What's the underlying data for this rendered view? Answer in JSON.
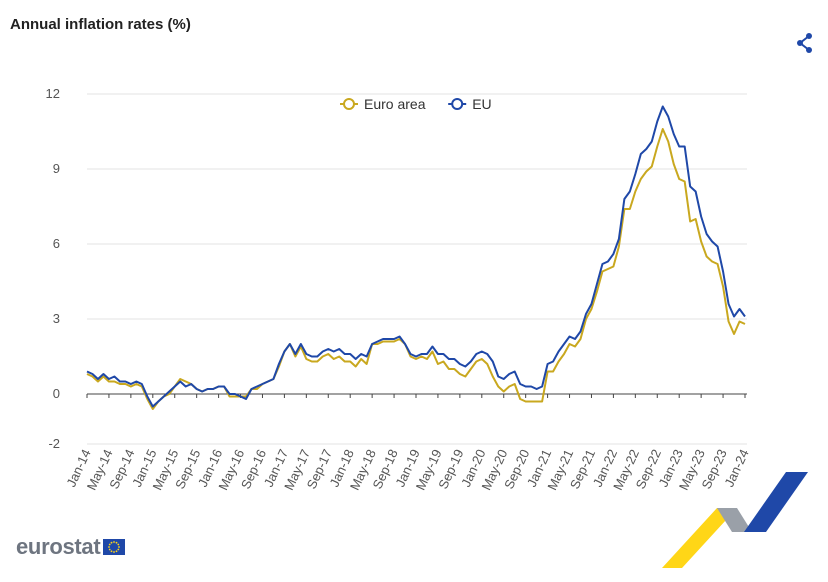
{
  "title": "Annual inflation rates (%)",
  "icons": {
    "share": "share-icon"
  },
  "logo": {
    "text": "eurostat",
    "flag": "eu-flag-icon"
  },
  "colors": {
    "euro_area": "#c9a81f",
    "eu": "#1f48a8",
    "grid": "#e3e3e3",
    "axis": "#555555"
  },
  "chart_data": {
    "type": "line",
    "title": "Annual inflation rates (%)",
    "legend": "top-center",
    "grid": true,
    "ylim": [
      -2,
      12
    ],
    "yticks": [
      -2,
      0,
      3,
      6,
      9,
      12
    ],
    "xticks": [
      "Jan-14",
      "May-14",
      "Sep-14",
      "Jan-15",
      "May-15",
      "Sep-15",
      "Jan-16",
      "May-16",
      "Sep-16",
      "Jan-17",
      "May-17",
      "Sep-17",
      "Jan-18",
      "May-18",
      "Sep-18",
      "Jan-19",
      "May-19",
      "Sep-19",
      "Jan-20",
      "May-20",
      "Sep-20",
      "Jan-21",
      "May-21",
      "Sep-21",
      "Jan-22",
      "May-22",
      "Sep-22",
      "Jan-23",
      "May-23",
      "Sep-23",
      "Jan-24"
    ],
    "x_start": "Jan-14",
    "x_end": "Feb-24",
    "series": [
      {
        "name": "Euro area",
        "color": "#c9a81f",
        "values": [
          0.8,
          0.7,
          0.5,
          0.7,
          0.5,
          0.5,
          0.4,
          0.4,
          0.3,
          0.4,
          0.3,
          -0.2,
          -0.6,
          -0.3,
          -0.1,
          0.0,
          0.3,
          0.6,
          0.5,
          0.4,
          0.2,
          0.1,
          0.2,
          0.2,
          0.3,
          0.3,
          -0.1,
          -0.1,
          -0.1,
          -0.1,
          0.2,
          0.2,
          0.4,
          0.5,
          0.6,
          1.1,
          1.7,
          2.0,
          1.5,
          1.9,
          1.4,
          1.3,
          1.3,
          1.5,
          1.6,
          1.4,
          1.5,
          1.3,
          1.3,
          1.1,
          1.4,
          1.2,
          2.0,
          2.0,
          2.1,
          2.1,
          2.1,
          2.2,
          2.0,
          1.5,
          1.4,
          1.5,
          1.4,
          1.7,
          1.2,
          1.3,
          1.0,
          1.0,
          0.8,
          0.7,
          1.0,
          1.3,
          1.4,
          1.2,
          0.7,
          0.3,
          0.1,
          0.3,
          0.4,
          -0.2,
          -0.3,
          -0.3,
          -0.3,
          -0.3,
          0.9,
          0.9,
          1.3,
          1.6,
          2.0,
          1.9,
          2.2,
          3.0,
          3.4,
          4.1,
          4.9,
          5.0,
          5.1,
          5.9,
          7.4,
          7.4,
          8.1,
          8.6,
          8.9,
          9.1,
          9.9,
          10.6,
          10.1,
          9.2,
          8.6,
          8.5,
          6.9,
          7.0,
          6.1,
          5.5,
          5.3,
          5.2,
          4.3,
          2.9,
          2.4,
          2.9,
          2.8
        ]
      },
      {
        "name": "EU",
        "color": "#1f48a8",
        "values": [
          0.9,
          0.8,
          0.6,
          0.8,
          0.6,
          0.7,
          0.5,
          0.5,
          0.4,
          0.5,
          0.4,
          -0.1,
          -0.5,
          -0.3,
          -0.1,
          0.1,
          0.3,
          0.5,
          0.3,
          0.4,
          0.2,
          0.1,
          0.2,
          0.2,
          0.3,
          0.3,
          0.0,
          0.0,
          -0.1,
          -0.2,
          0.2,
          0.3,
          0.4,
          0.5,
          0.6,
          1.2,
          1.7,
          2.0,
          1.6,
          2.0,
          1.6,
          1.5,
          1.5,
          1.7,
          1.8,
          1.7,
          1.8,
          1.6,
          1.6,
          1.4,
          1.6,
          1.5,
          2.0,
          2.1,
          2.2,
          2.2,
          2.2,
          2.3,
          2.0,
          1.6,
          1.5,
          1.6,
          1.6,
          1.9,
          1.6,
          1.6,
          1.4,
          1.4,
          1.2,
          1.1,
          1.3,
          1.6,
          1.7,
          1.6,
          1.3,
          0.7,
          0.6,
          0.8,
          0.9,
          0.4,
          0.3,
          0.3,
          0.2,
          0.3,
          1.2,
          1.3,
          1.7,
          2.0,
          2.3,
          2.2,
          2.5,
          3.2,
          3.6,
          4.4,
          5.2,
          5.3,
          5.6,
          6.2,
          7.8,
          8.1,
          8.8,
          9.6,
          9.8,
          10.1,
          10.9,
          11.5,
          11.1,
          10.4,
          9.9,
          9.9,
          8.3,
          8.1,
          7.1,
          6.4,
          6.1,
          5.9,
          4.9,
          3.6,
          3.1,
          3.4,
          3.1
        ]
      }
    ]
  }
}
